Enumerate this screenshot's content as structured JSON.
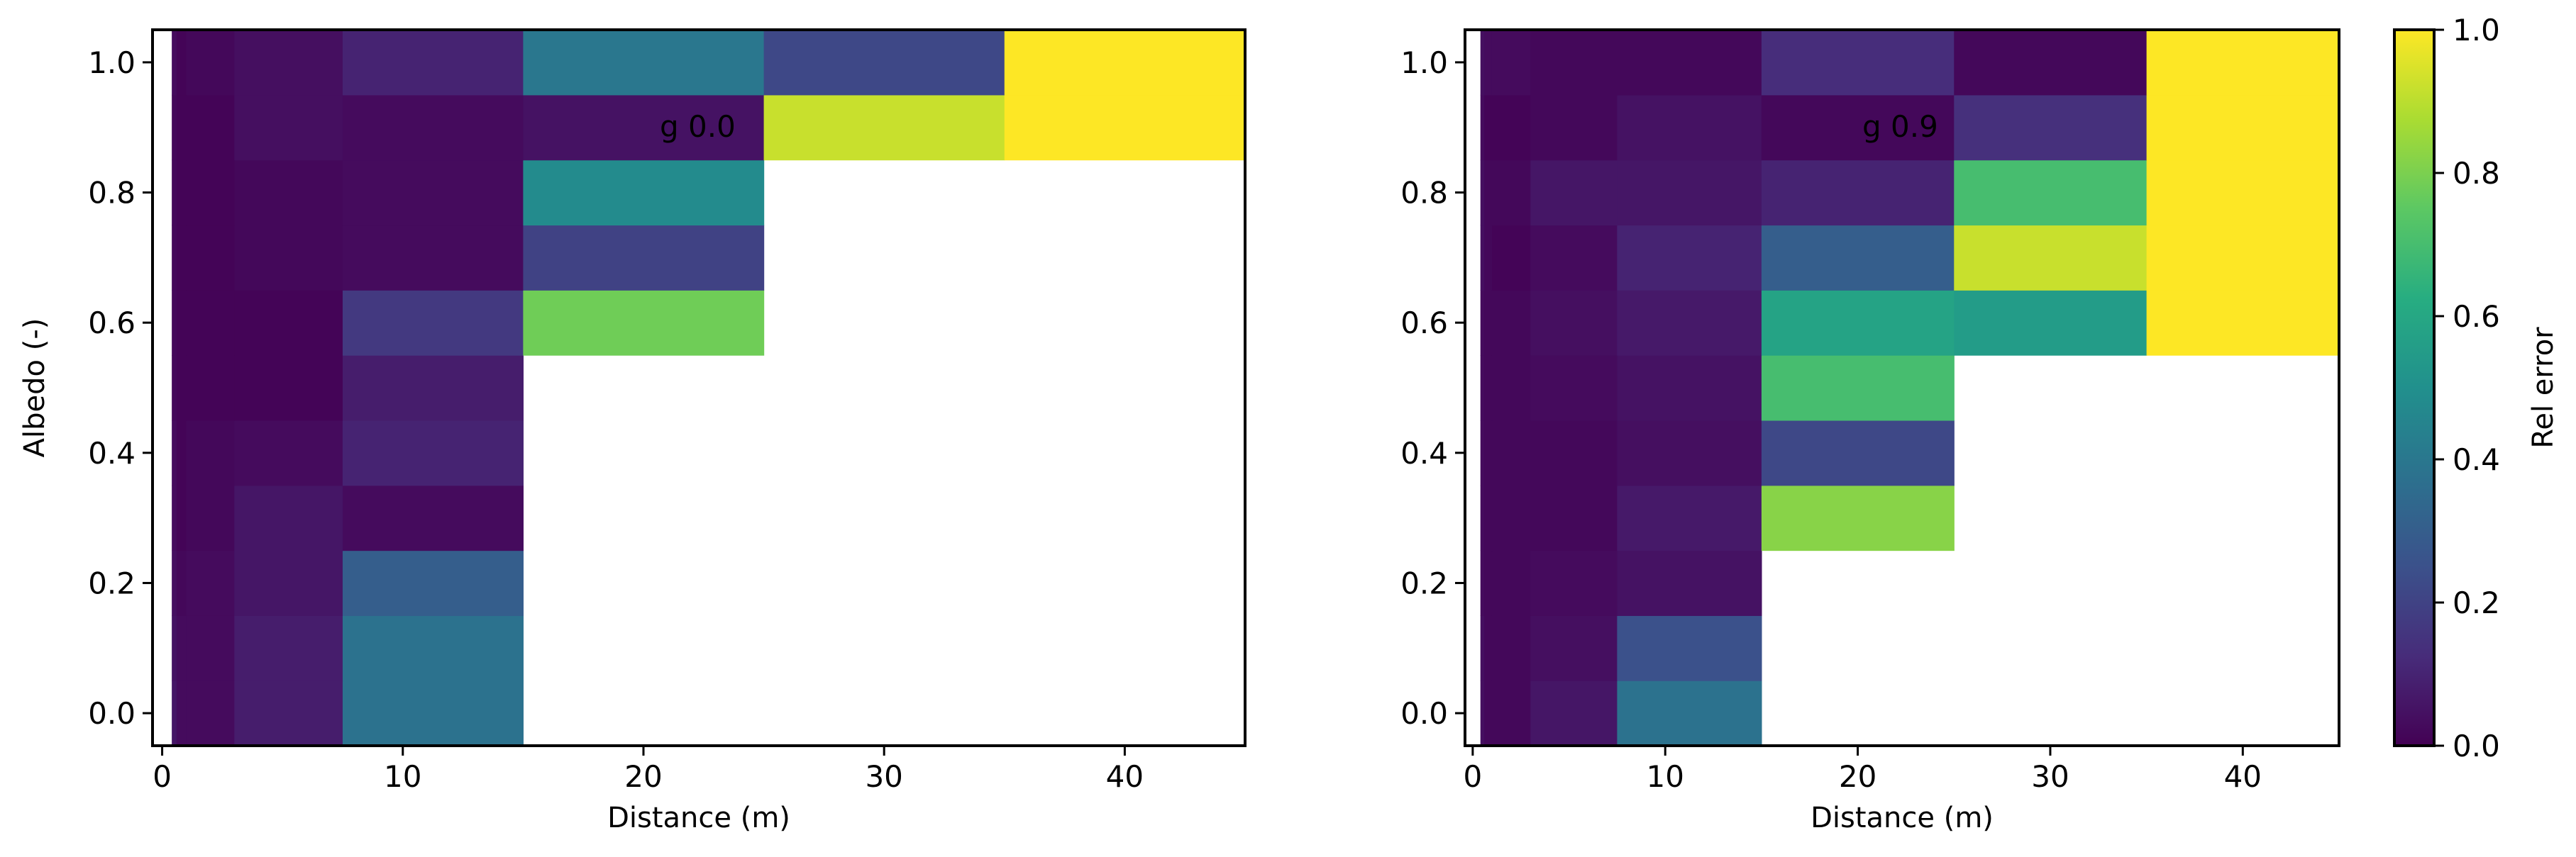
{
  "chart_data": [
    {
      "type": "heatmap",
      "annotation": "g 0.0",
      "xlabel": "Distance (m)",
      "ylabel": "Albedo (-)",
      "xlim": [
        -0.4,
        45
      ],
      "ylim": [
        -0.05,
        1.05
      ],
      "xticks": [
        "0",
        "10",
        "20",
        "30",
        "40"
      ],
      "yticks": [
        "0.0",
        "0.2",
        "0.4",
        "0.6",
        "0.8",
        "1.0"
      ],
      "x_edges": [
        0.4,
        0.6,
        1,
        3,
        7.5,
        15,
        25,
        35,
        45
      ],
      "y_centers": [
        0.0,
        0.1,
        0.2,
        0.3,
        0.4,
        0.5,
        0.6,
        0.7,
        0.8,
        0.9,
        1.0
      ],
      "values": [
        [
          0.06,
          0.03,
          0.03,
          0.08,
          0.38,
          null,
          null,
          null
        ],
        [
          0.05,
          0.03,
          0.03,
          0.08,
          0.38,
          null,
          null,
          null
        ],
        [
          0.04,
          0.02,
          0.03,
          0.06,
          0.3,
          null,
          null,
          null
        ],
        [
          0.03,
          0.01,
          0.02,
          0.06,
          0.03,
          null,
          null,
          null
        ],
        [
          0.03,
          0.01,
          0.02,
          0.03,
          0.1,
          null,
          null,
          null
        ],
        [
          0.02,
          0.01,
          0.01,
          0.01,
          0.08,
          null,
          null,
          null
        ],
        [
          0.02,
          0.01,
          0.01,
          0.01,
          0.17,
          0.78,
          null,
          null
        ],
        [
          0.02,
          0.01,
          0.01,
          0.02,
          0.03,
          0.2,
          null,
          null
        ],
        [
          0.02,
          0.01,
          0.01,
          0.02,
          0.03,
          0.48,
          null,
          null
        ],
        [
          0.02,
          0.01,
          0.01,
          0.04,
          0.03,
          0.05,
          0.92,
          1.0
        ],
        [
          0.03,
          0.01,
          0.02,
          0.04,
          0.1,
          0.4,
          0.22,
          1.0
        ]
      ]
    },
    {
      "type": "heatmap",
      "annotation": "g 0.9",
      "xlabel": "Distance (m)",
      "ylabel": "",
      "xlim": [
        -0.4,
        45
      ],
      "ylim": [
        -0.05,
        1.05
      ],
      "xticks": [
        "0",
        "10",
        "20",
        "30",
        "40"
      ],
      "yticks": [
        "0.0",
        "0.2",
        "0.4",
        "0.6",
        "0.8",
        "1.0"
      ],
      "x_edges": [
        0.4,
        0.6,
        1,
        3,
        7.5,
        15,
        25,
        35,
        45
      ],
      "y_centers": [
        0.0,
        0.1,
        0.2,
        0.3,
        0.4,
        0.5,
        0.6,
        0.7,
        0.8,
        0.9,
        1.0
      ],
      "values": [
        [
          0.04,
          0.02,
          0.02,
          0.06,
          0.38,
          null,
          null,
          null
        ],
        [
          0.04,
          0.02,
          0.02,
          0.04,
          0.25,
          null,
          null,
          null
        ],
        [
          0.03,
          0.02,
          0.02,
          0.03,
          0.05,
          null,
          null,
          null
        ],
        [
          0.03,
          0.02,
          0.02,
          0.02,
          0.07,
          0.82,
          null,
          null
        ],
        [
          0.03,
          0.02,
          0.02,
          0.02,
          0.04,
          0.22,
          null,
          null
        ],
        [
          0.03,
          0.02,
          0.02,
          0.03,
          0.05,
          0.7,
          null,
          null
        ],
        [
          0.03,
          0.02,
          0.02,
          0.04,
          0.07,
          0.58,
          0.55,
          1.0
        ],
        [
          0.04,
          0.02,
          0.01,
          0.03,
          0.1,
          0.3,
          0.92,
          1.0
        ],
        [
          0.04,
          0.02,
          0.02,
          0.06,
          0.06,
          0.1,
          0.7,
          1.0
        ],
        [
          0.03,
          0.01,
          0.01,
          0.02,
          0.05,
          0.02,
          0.14,
          1.0
        ],
        [
          0.04,
          0.03,
          0.03,
          0.02,
          0.02,
          0.13,
          0.02,
          1.0
        ]
      ]
    }
  ],
  "colorbar": {
    "label": "Rel error",
    "colormap": "viridis",
    "range": [
      0.0,
      1.0
    ],
    "ticks": [
      "0.0",
      "0.2",
      "0.4",
      "0.6",
      "0.8",
      "1.0"
    ]
  }
}
